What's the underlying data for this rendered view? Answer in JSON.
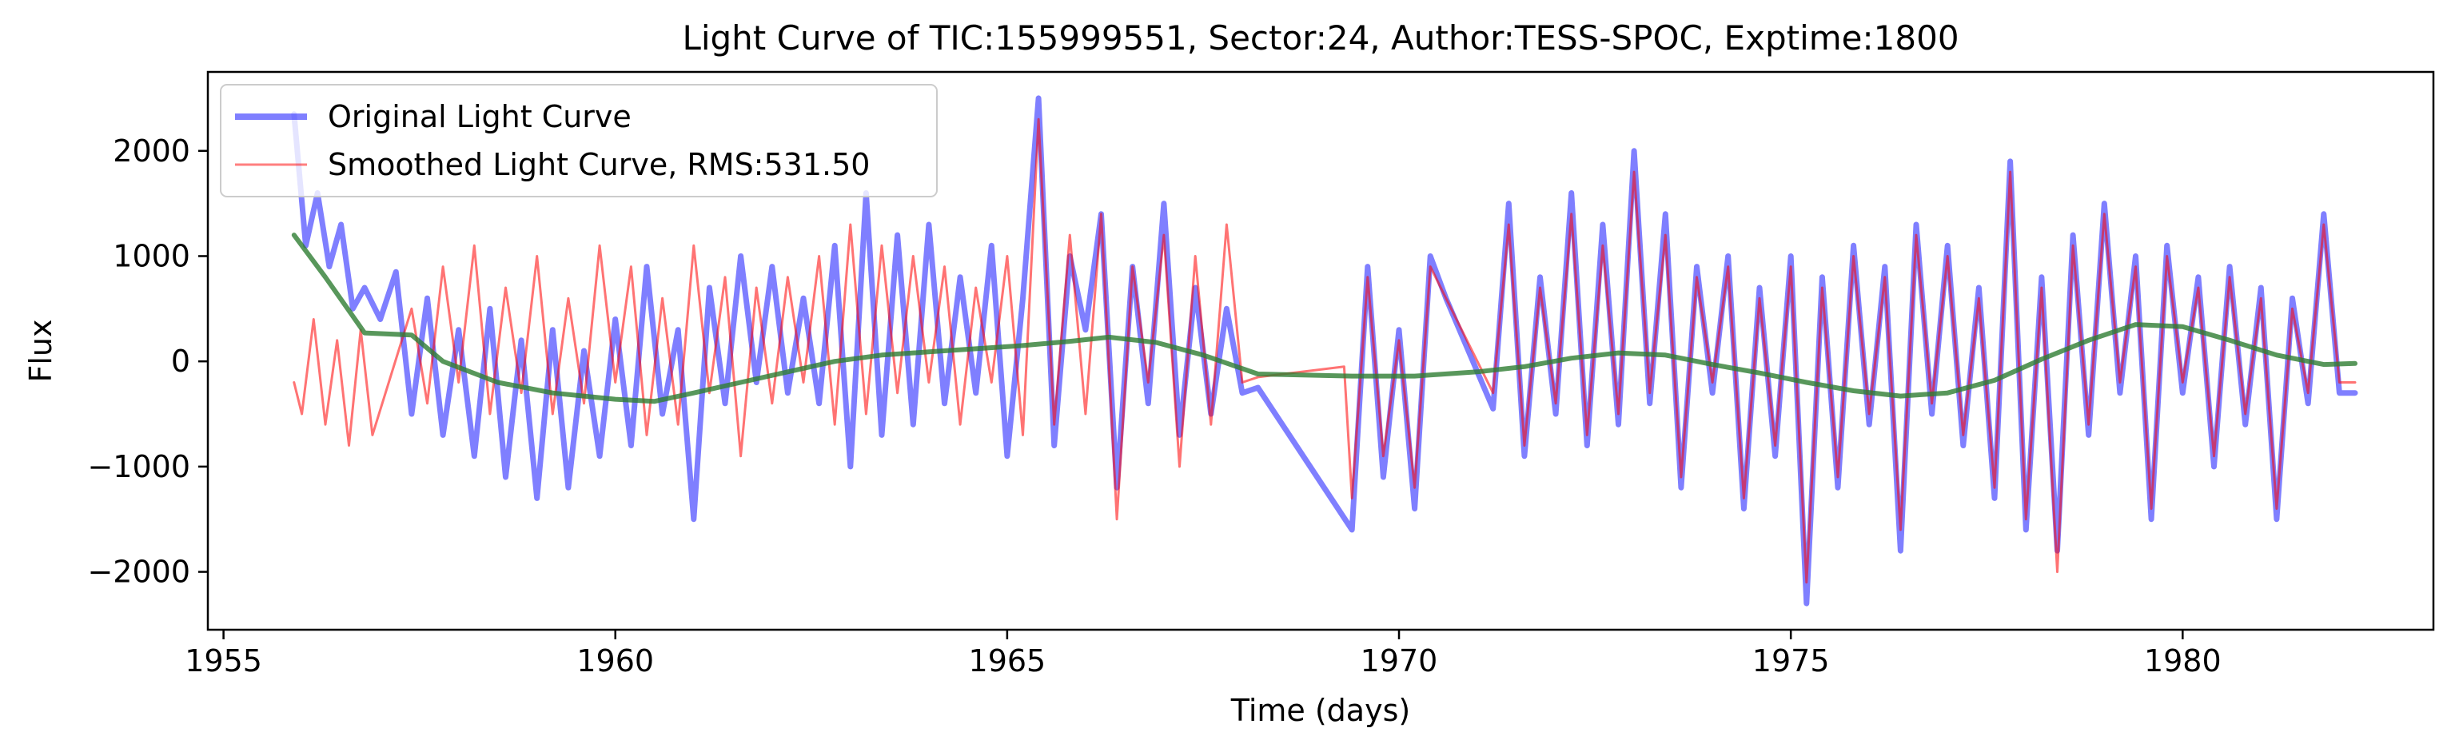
{
  "chart_data": {
    "type": "line",
    "title": "Light Curve of TIC:155999551, Sector:24, Author:TESS-SPOC, Exptime:1800",
    "xlabel": "Time (days)",
    "ylabel": "Flux",
    "xlim": [
      1954.8,
      1983.2
    ],
    "ylim": [
      -2550,
      2750
    ],
    "xticks": [
      1955,
      1960,
      1965,
      1970,
      1975,
      1980
    ],
    "yticks": [
      -2000,
      -1000,
      0,
      1000,
      2000
    ],
    "xtick_labels": [
      "1955",
      "1960",
      "1965",
      "1970",
      "1975",
      "1980"
    ],
    "ytick_labels": [
      "−2000",
      "−1000",
      "0",
      "1000",
      "2000"
    ],
    "grid": false,
    "legend_position": "top-left",
    "series": [
      {
        "name": "Original Light Curve",
        "color": "#0000ff",
        "x": [
          1955.9,
          1956.05,
          1956.2,
          1956.35,
          1956.5,
          1956.65,
          1956.8,
          1957.0,
          1957.2,
          1957.4,
          1957.6,
          1957.8,
          1958.0,
          1958.2,
          1958.4,
          1958.6,
          1958.8,
          1959.0,
          1959.2,
          1959.4,
          1959.6,
          1959.8,
          1960.0,
          1960.2,
          1960.4,
          1960.6,
          1960.8,
          1961.0,
          1961.2,
          1961.4,
          1961.6,
          1961.8,
          1962.0,
          1962.2,
          1962.4,
          1962.6,
          1962.8,
          1963.0,
          1963.2,
          1963.4,
          1963.6,
          1963.8,
          1964.0,
          1964.2,
          1964.4,
          1964.6,
          1964.8,
          1965.0,
          1965.2,
          1965.4,
          1965.6,
          1965.8,
          1966.0,
          1966.2,
          1966.4,
          1966.6,
          1966.8,
          1967.0,
          1967.2,
          1967.4,
          1967.6,
          1967.8,
          1968.0,
          1968.2,
          1969.4,
          1969.6,
          1969.8,
          1970.0,
          1970.2,
          1970.4,
          1970.6,
          1971.2,
          1971.4,
          1971.6,
          1971.8,
          1972.0,
          1972.2,
          1972.4,
          1972.6,
          1972.8,
          1973.0,
          1973.2,
          1973.4,
          1973.6,
          1973.8,
          1974.0,
          1974.2,
          1974.4,
          1974.6,
          1974.8,
          1975.0,
          1975.2,
          1975.4,
          1975.6,
          1975.8,
          1976.0,
          1976.2,
          1976.4,
          1976.6,
          1976.8,
          1977.0,
          1977.2,
          1977.4,
          1977.6,
          1977.8,
          1978.0,
          1978.2,
          1978.4,
          1978.6,
          1978.8,
          1979.0,
          1979.2,
          1979.4,
          1979.6,
          1979.8,
          1980.0,
          1980.2,
          1980.4,
          1980.6,
          1980.8,
          1981.0,
          1981.2,
          1981.4,
          1981.6,
          1981.8,
          1982.0,
          1982.2
        ],
        "y": [
          2350,
          1100,
          1600,
          900,
          1300,
          500,
          700,
          400,
          850,
          -500,
          600,
          -700,
          300,
          -900,
          500,
          -1100,
          200,
          -1300,
          300,
          -1200,
          100,
          -900,
          400,
          -800,
          900,
          -500,
          300,
          -1500,
          700,
          -400,
          1000,
          -200,
          900,
          -300,
          600,
          -400,
          1100,
          -1000,
          1600,
          -700,
          1200,
          -600,
          1300,
          -400,
          800,
          -300,
          1100,
          -900,
          600,
          2500,
          -800,
          1000,
          300,
          1400,
          -1200,
          900,
          -400,
          1500,
          -700,
          700,
          -500,
          500,
          -300,
          -250,
          -1600,
          900,
          -1100,
          300,
          -1400,
          1000,
          600,
          -450,
          1500,
          -900,
          800,
          -500,
          1600,
          -800,
          1300,
          -600,
          2000,
          -400,
          1400,
          -1200,
          900,
          -300,
          1000,
          -1400,
          700,
          -900,
          1000,
          -2300,
          800,
          -1200,
          1100,
          -600,
          900,
          -1800,
          1300,
          -500,
          1100,
          -800,
          700,
          -1300,
          1900,
          -1600,
          800,
          -1800,
          1200,
          -700,
          1500,
          -300,
          1000,
          -1500,
          1100,
          -300,
          800,
          -1000,
          900,
          -600,
          700,
          -1500,
          600,
          -400,
          1400,
          -300,
          -300
        ]
      },
      {
        "name": "Smoothed Light Curve, RMS:531.50",
        "color": "#ff0000",
        "x": [
          1955.9,
          1956.0,
          1956.15,
          1956.3,
          1956.45,
          1956.6,
          1956.75,
          1956.9,
          1957.4,
          1957.6,
          1957.8,
          1958.0,
          1958.2,
          1958.4,
          1958.6,
          1958.8,
          1959.0,
          1959.2,
          1959.4,
          1959.6,
          1959.8,
          1960.0,
          1960.2,
          1960.4,
          1960.6,
          1960.8,
          1961.0,
          1961.2,
          1961.4,
          1961.6,
          1961.8,
          1962.0,
          1962.2,
          1962.4,
          1962.6,
          1962.8,
          1963.0,
          1963.2,
          1963.4,
          1963.6,
          1963.8,
          1964.0,
          1964.2,
          1964.4,
          1964.6,
          1964.8,
          1965.0,
          1965.2,
          1965.4,
          1965.6,
          1965.8,
          1966.0,
          1966.2,
          1966.4,
          1966.6,
          1966.8,
          1967.0,
          1967.2,
          1967.4,
          1967.6,
          1967.8,
          1968.0,
          1968.2,
          1969.3,
          1969.4,
          1969.6,
          1969.8,
          1970.0,
          1970.2,
          1970.4,
          1970.6,
          1971.2,
          1971.4,
          1971.6,
          1971.8,
          1972.0,
          1972.2,
          1972.4,
          1972.6,
          1972.8,
          1973.0,
          1973.2,
          1973.4,
          1973.6,
          1973.8,
          1974.0,
          1974.2,
          1974.4,
          1974.6,
          1974.8,
          1975.0,
          1975.2,
          1975.4,
          1975.6,
          1975.8,
          1976.0,
          1976.2,
          1976.4,
          1976.6,
          1976.8,
          1977.0,
          1977.2,
          1977.4,
          1977.6,
          1977.8,
          1978.0,
          1978.2,
          1978.4,
          1978.6,
          1978.8,
          1979.0,
          1979.2,
          1979.4,
          1979.6,
          1979.8,
          1980.0,
          1980.2,
          1980.4,
          1980.6,
          1980.8,
          1981.0,
          1981.2,
          1981.4,
          1981.6,
          1981.8,
          1982.0,
          1982.2
        ],
        "y": [
          -200,
          -500,
          400,
          -600,
          200,
          -800,
          300,
          -700,
          500,
          -400,
          900,
          -200,
          1100,
          -500,
          700,
          -300,
          1000,
          -500,
          600,
          -400,
          1100,
          -200,
          900,
          -700,
          600,
          -600,
          1100,
          -300,
          800,
          -900,
          700,
          -400,
          800,
          -200,
          1000,
          -600,
          1300,
          -500,
          1100,
          -300,
          1000,
          -200,
          900,
          -600,
          700,
          -200,
          1000,
          -700,
          2300,
          -600,
          1200,
          -500,
          1400,
          -1500,
          900,
          -200,
          1200,
          -1000,
          1000,
          -600,
          1300,
          -200,
          -150,
          -50,
          -1300,
          800,
          -900,
          200,
          -1200,
          900,
          600,
          -300,
          1300,
          -800,
          700,
          -400,
          1400,
          -700,
          1100,
          -500,
          1800,
          -300,
          1200,
          -1100,
          800,
          -200,
          900,
          -1300,
          600,
          -800,
          900,
          -2100,
          700,
          -1100,
          1000,
          -500,
          800,
          -1600,
          1200,
          -400,
          1000,
          -700,
          600,
          -1200,
          1800,
          -1500,
          700,
          -2000,
          1100,
          -600,
          1400,
          -200,
          900,
          -1400,
          1000,
          -200,
          700,
          -900,
          800,
          -500,
          600,
          -1400,
          500,
          -300,
          1300,
          -200,
          -200
        ]
      },
      {
        "name": "",
        "color": "#2e7d32",
        "x": [
          1955.9,
          1956.3,
          1956.8,
          1957.4,
          1957.8,
          1958.5,
          1959.2,
          1960.0,
          1960.5,
          1961.0,
          1961.6,
          1962.2,
          1962.8,
          1963.4,
          1964.0,
          1964.6,
          1965.2,
          1965.8,
          1966.3,
          1966.9,
          1967.5,
          1968.2,
          1969.4,
          1970.2,
          1971.0,
          1971.6,
          1972.2,
          1972.8,
          1973.4,
          1974.0,
          1974.6,
          1975.2,
          1975.8,
          1976.4,
          1977.0,
          1977.6,
          1978.2,
          1978.8,
          1979.4,
          1980.0,
          1980.6,
          1981.2,
          1981.8,
          1982.2
        ],
        "y": [
          1200,
          800,
          270,
          250,
          0,
          -200,
          -300,
          -360,
          -380,
          -300,
          -200,
          -100,
          0,
          60,
          90,
          120,
          150,
          190,
          230,
          180,
          60,
          -120,
          -140,
          -140,
          -100,
          -50,
          30,
          80,
          60,
          -30,
          -110,
          -200,
          -280,
          -330,
          -300,
          -180,
          20,
          200,
          350,
          330,
          200,
          60,
          -30,
          -20
        ]
      }
    ]
  }
}
